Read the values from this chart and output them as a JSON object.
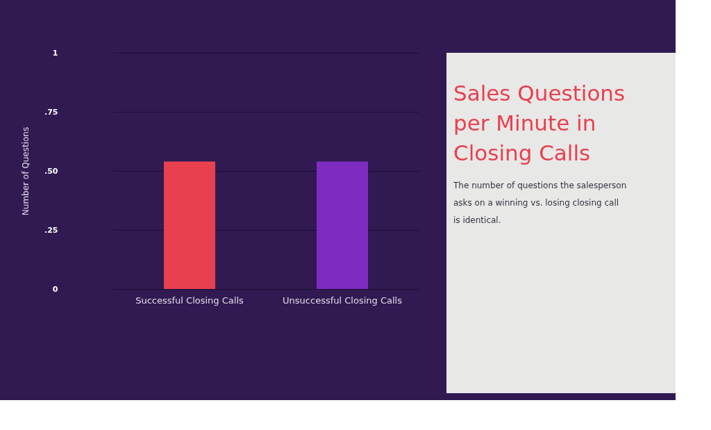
{
  "chart_data": {
    "type": "bar",
    "title": "Sales Questions per Minute in Closing Calls",
    "subtitle": "The number of questions the salesperson asks on a winning vs. losing closing call is identical.",
    "ylabel": "Number of Questions",
    "categories": [
      "Successful Closing Calls",
      "Unsuccessful Closing Calls"
    ],
    "values": [
      0.54,
      0.54
    ],
    "colors": [
      "#e8404f",
      "#7e2bc0"
    ],
    "ylim": [
      0,
      1
    ],
    "yticks": [
      0,
      {
        "value": 0.25,
        "label": ".25"
      },
      {
        "value": 0.5,
        "label": ".50"
      },
      {
        "value": 0.75,
        "label": ".75"
      },
      1
    ],
    "grid": "y"
  }
}
